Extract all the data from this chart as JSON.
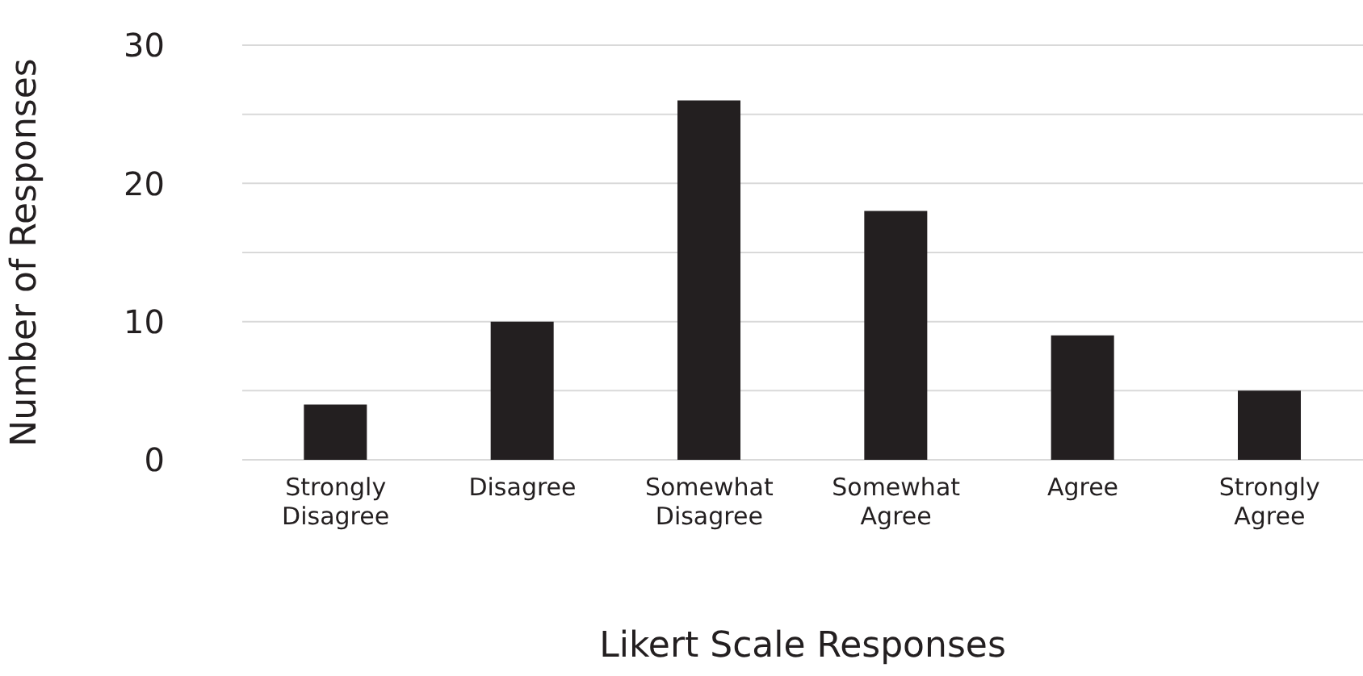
{
  "chart_data": {
    "type": "bar",
    "xlabel": "Likert Scale Responses",
    "ylabel": "Number of Responses",
    "categories": [
      "Strongly Disagree",
      "Disagree",
      "Somewhat Disagree",
      "Somewhat Agree",
      "Agree",
      "Strongly Agree"
    ],
    "values": [
      4,
      10,
      26,
      18,
      9,
      5
    ],
    "color": "#231f20",
    "ylim": [
      0,
      30
    ],
    "yticks": [
      0,
      {
        "value": 5,
        "label": null
      },
      10,
      {
        "value": 15,
        "label": null
      },
      20,
      {
        "value": 25,
        "label": null
      },
      30
    ],
    "grid": "y",
    "legend": false
  }
}
